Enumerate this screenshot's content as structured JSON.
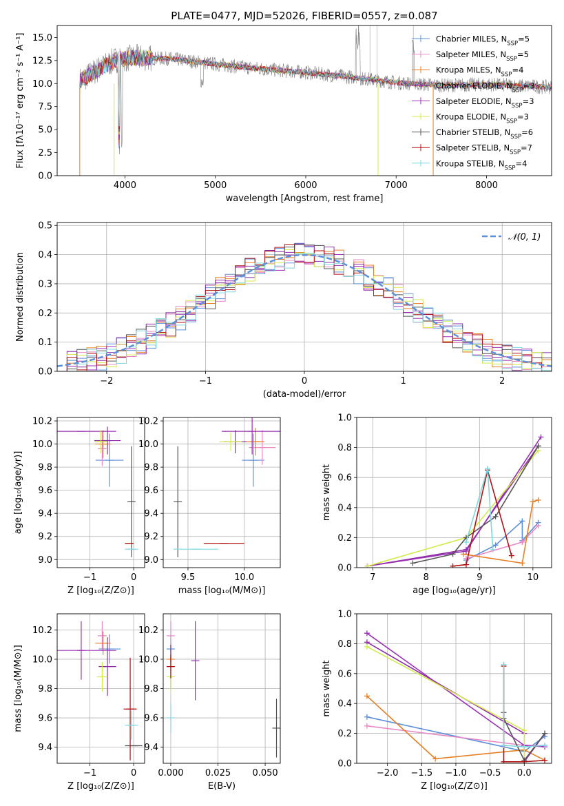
{
  "colors": {
    "chabrier_miles": "#5b8fd9",
    "salpeter_miles": "#e889c5",
    "kroupa_miles": "#e67e22",
    "chabrier_elodie": "#8e2ca8",
    "salpeter_elodie": "#9b30b5",
    "kroupa_elodie": "#d4ea4a",
    "chabrier_stelib": "#555555",
    "salpeter_stelib": "#b01010",
    "kroupa_stelib": "#7fd7e0",
    "normal": "#5b8fd9",
    "grid": "#b0b0b0"
  },
  "chart_data": [
    {
      "id": "spectrum",
      "type": "line",
      "title": "PLATE=0477, MJD=52026, FIBERID=0557, z=0.087",
      "xlabel": "wavelength [Angstrom, rest frame]",
      "ylabel": "Flux [fλ10⁻¹⁷ erg cm⁻² s⁻¹ A⁻¹]",
      "xlim": [
        3250,
        8720
      ],
      "ylim": [
        0,
        16.3
      ],
      "xticks": [
        "4000",
        "5000",
        "6000",
        "7000",
        "8000"
      ],
      "yticks": [
        "0.0",
        "2.5",
        "5.0",
        "7.5",
        "10.0",
        "12.5",
        "15.0"
      ],
      "legend_position": "top-right",
      "series": [
        {
          "name": "Chabrier MILES, N",
          "sub": "SSP",
          "eq": "=5",
          "color_key": "chabrier_miles"
        },
        {
          "name": "Salpeter MILES, N",
          "sub": "SSP",
          "eq": "=5",
          "color_key": "salpeter_miles"
        },
        {
          "name": "Kroupa MILES, N",
          "sub": "SSP",
          "eq": "=4",
          "color_key": "kroupa_miles"
        },
        {
          "name": "Chabrier ELODIE, N",
          "sub": "SSP",
          "eq": "=3",
          "color_key": "chabrier_elodie"
        },
        {
          "name": "Salpeter ELODIE, N",
          "sub": "SSP",
          "eq": "=3",
          "color_key": "salpeter_elodie"
        },
        {
          "name": "Kroupa ELODIE, N",
          "sub": "SSP",
          "eq": "=3",
          "color_key": "kroupa_elodie"
        },
        {
          "name": "Chabrier STELIB, N",
          "sub": "SSP",
          "eq": "=6",
          "color_key": "chabrier_stelib"
        },
        {
          "name": "Salpeter STELIB, N",
          "sub": "SSP",
          "eq": "=7",
          "color_key": "salpeter_stelib"
        },
        {
          "name": "Kroupa STELIB, N",
          "sub": "SSP",
          "eq": "=4",
          "color_key": "kroupa_stelib"
        }
      ],
      "continuum": [
        [
          3500,
          10.3
        ],
        [
          3700,
          11.5
        ],
        [
          3900,
          12.6
        ],
        [
          4100,
          12.8
        ],
        [
          4500,
          12.7
        ],
        [
          5000,
          12.1
        ],
        [
          5500,
          11.6
        ],
        [
          6000,
          11.2
        ],
        [
          6500,
          10.7
        ],
        [
          7000,
          10.1
        ],
        [
          7500,
          9.8
        ],
        [
          8000,
          9.9
        ],
        [
          8500,
          9.7
        ],
        [
          8720,
          9.6
        ]
      ]
    },
    {
      "id": "residuals",
      "type": "step",
      "xlabel": "(data-model)/error",
      "ylabel": "Normed distribution",
      "xlim": [
        -2.5,
        2.5
      ],
      "ylim": [
        0,
        0.51
      ],
      "xticks": [
        "−2",
        "−1",
        "0",
        "1",
        "2"
      ],
      "yticks": [
        "0.0",
        "0.1",
        "0.2",
        "0.3",
        "0.4",
        "0.5"
      ],
      "legend": "𝒩(0, 1)",
      "legend_position": "top-right",
      "bin_width": 0.1
    },
    {
      "id": "age_vs_Z",
      "type": "errorbar",
      "xlabel": "Z [log₁₀(Z/Z⊙)]",
      "ylabel": "age  [log₁₀(age/yr)]",
      "xlim": [
        -1.75,
        0.25
      ],
      "ylim": [
        8.93,
        10.23
      ],
      "xticks": [
        "−1",
        "0"
      ],
      "xtick_values": [
        -1,
        0
      ],
      "yticks": [
        "9.0",
        "9.2",
        "9.4",
        "9.6",
        "9.8",
        "10.0",
        "10.2"
      ],
      "points": [
        {
          "c": "chabrier_miles",
          "x": -0.55,
          "xe": 0.32,
          "y": 9.86,
          "ye": 0.23
        },
        {
          "c": "salpeter_miles",
          "x": -0.72,
          "xe": 0.1,
          "y": 9.96,
          "ye": 0.15
        },
        {
          "c": "kroupa_miles",
          "x": -0.7,
          "xe": 0.18,
          "y": 10.0,
          "ye": 0.12
        },
        {
          "c": "chabrier_elodie",
          "x": -0.6,
          "xe": 0.3,
          "y": 10.03,
          "ye": 0.12
        },
        {
          "c": "salpeter_elodie",
          "x": -1.2,
          "xe": 0.8,
          "y": 10.11,
          "ye": 0.0
        },
        {
          "c": "kroupa_elodie",
          "x": -0.75,
          "xe": 0.15,
          "y": 10.02,
          "ye": 0.1
        },
        {
          "c": "chabrier_stelib",
          "x": -0.05,
          "xe": 0.05,
          "y": 9.5,
          "ye": 0.48
        },
        {
          "c": "salpeter_stelib",
          "x": -0.1,
          "xe": 0.1,
          "y": 9.14,
          "ye": 0.0
        },
        {
          "c": "kroupa_stelib",
          "x": -0.05,
          "xe": 0.15,
          "y": 9.09,
          "ye": 0.0
        }
      ]
    },
    {
      "id": "age_vs_mass",
      "type": "errorbar",
      "xlabel": "mass [log₁₀(M/M⊙)]",
      "ylabel": "",
      "xlim": [
        9.28,
        10.32
      ],
      "ylim": [
        8.93,
        10.23
      ],
      "xticks": [
        "9.5",
        "10.0"
      ],
      "xtick_values": [
        9.5,
        10.0
      ],
      "yticks": [
        "9.0",
        "9.2",
        "9.4",
        "9.6",
        "9.8",
        "10.0",
        "10.2"
      ],
      "points": [
        {
          "c": "chabrier_miles",
          "x": 10.08,
          "xe": 0.1,
          "y": 9.86,
          "ye": 0.23
        },
        {
          "c": "salpeter_miles",
          "x": 10.16,
          "xe": 0.12,
          "y": 9.97,
          "ye": 0.15
        },
        {
          "c": "kroupa_miles",
          "x": 10.1,
          "xe": 0.08,
          "y": 10.02,
          "ye": 0.12
        },
        {
          "c": "chabrier_elodie",
          "x": 9.92,
          "xe": 0.1,
          "y": 10.02,
          "ye": 0.1
        },
        {
          "c": "salpeter_elodie",
          "x": 10.07,
          "xe": 0.27,
          "y": 10.11,
          "ye": 0.2
        },
        {
          "c": "kroupa_elodie",
          "x": 9.88,
          "xe": 0.1,
          "y": 10.02,
          "ye": 0.08
        },
        {
          "c": "chabrier_stelib",
          "x": 9.41,
          "xe": 0.0,
          "y": 9.5,
          "ye": 0.48
        },
        {
          "c": "salpeter_stelib",
          "x": 9.82,
          "xe": 0.18,
          "y": 9.14,
          "ye": 0.0
        },
        {
          "c": "kroupa_stelib",
          "x": 9.57,
          "xe": 0.2,
          "y": 9.09,
          "ye": 0.0
        }
      ]
    },
    {
      "id": "mw_vs_age",
      "type": "line",
      "xlabel": "age  [log₁₀(age/yr)]",
      "ylabel": "mass weight",
      "xlim": [
        6.7,
        10.35
      ],
      "ylim": [
        0,
        1.0
      ],
      "xticks": [
        "7",
        "8",
        "9",
        "10"
      ],
      "xtick_values": [
        7,
        8,
        9,
        10
      ],
      "yticks": [
        "0.0",
        "0.2",
        "0.4",
        "0.6",
        "0.8",
        "1.0"
      ],
      "series": [
        {
          "c": "chabrier_miles",
          "pts": [
            [
              8.75,
              0.05
            ],
            [
              9.3,
              0.15
            ],
            [
              9.8,
              0.31
            ],
            [
              9.8,
              0.18
            ],
            [
              10.1,
              0.3
            ]
          ]
        },
        {
          "c": "salpeter_miles",
          "pts": [
            [
              8.75,
              0.06
            ],
            [
              9.8,
              0.17
            ],
            [
              10.1,
              0.28
            ]
          ]
        },
        {
          "c": "kroupa_miles",
          "pts": [
            [
              8.7,
              0.09
            ],
            [
              9.8,
              0.03
            ],
            [
              10.0,
              0.44
            ],
            [
              10.1,
              0.45
            ]
          ]
        },
        {
          "c": "chabrier_elodie",
          "pts": [
            [
              6.9,
              0.01
            ],
            [
              8.75,
              0.12
            ],
            [
              10.1,
              0.81
            ]
          ]
        },
        {
          "c": "salpeter_elodie",
          "pts": [
            [
              6.9,
              0.01
            ],
            [
              8.75,
              0.11
            ],
            [
              10.15,
              0.87
            ]
          ]
        },
        {
          "c": "kroupa_elodie",
          "pts": [
            [
              6.9,
              0.01
            ],
            [
              8.75,
              0.2
            ],
            [
              10.1,
              0.78
            ]
          ]
        },
        {
          "c": "chabrier_stelib",
          "pts": [
            [
              7.75,
              0.03
            ],
            [
              8.5,
              0.09
            ],
            [
              8.75,
              0.2
            ],
            [
              9.3,
              0.34
            ],
            [
              10.1,
              0.81
            ]
          ]
        },
        {
          "c": "salpeter_stelib",
          "pts": [
            [
              8.5,
              0.01
            ],
            [
              8.75,
              0.02
            ],
            [
              9.15,
              0.65
            ],
            [
              9.6,
              0.08
            ]
          ]
        },
        {
          "c": "kroupa_stelib",
          "pts": [
            [
              8.75,
              0.17
            ],
            [
              9.15,
              0.66
            ],
            [
              9.25,
              0.12
            ]
          ]
        }
      ]
    },
    {
      "id": "mass_vs_Z",
      "type": "errorbar",
      "xlabel": "Z [log₁₀(Z/Z⊙)]",
      "ylabel": "mass [log₁₀(M/M⊙)]",
      "xlim": [
        -1.75,
        0.25
      ],
      "ylim": [
        9.29,
        10.31
      ],
      "xticks": [
        "−1",
        "0"
      ],
      "xtick_values": [
        -1,
        0
      ],
      "yticks": [
        "9.4",
        "9.6",
        "9.8",
        "10.0",
        "10.2"
      ],
      "points": [
        {
          "c": "chabrier_miles",
          "x": -0.55,
          "xe": 0.25,
          "y": 10.07,
          "ye": 0.1
        },
        {
          "c": "salpeter_miles",
          "x": -0.72,
          "xe": 0.1,
          "y": 10.16,
          "ye": 0.1
        },
        {
          "c": "kroupa_miles",
          "x": -0.7,
          "xe": 0.18,
          "y": 10.11,
          "ye": 0.08
        },
        {
          "c": "chabrier_elodie",
          "x": -0.6,
          "xe": 0.2,
          "y": 9.95,
          "ye": 0.2
        },
        {
          "c": "salpeter_elodie",
          "x": -1.2,
          "xe": 0.8,
          "y": 10.06,
          "ye": 0.2
        },
        {
          "c": "kroupa_elodie",
          "x": -0.72,
          "xe": 0.12,
          "y": 9.88,
          "ye": 0.1
        },
        {
          "c": "chabrier_stelib",
          "x": 0.0,
          "xe": 0.2,
          "y": 9.41,
          "ye": 0.0
        },
        {
          "c": "salpeter_stelib",
          "x": -0.08,
          "xe": 0.15,
          "y": 9.66,
          "ye": 0.35
        },
        {
          "c": "kroupa_stelib",
          "x": -0.05,
          "xe": 0.15,
          "y": 9.55,
          "ye": 0.1
        }
      ]
    },
    {
      "id": "mass_vs_ebv",
      "type": "errorbar",
      "xlabel": "E(B-V)",
      "ylabel": "",
      "xlim": [
        -0.004,
        0.058
      ],
      "ylim": [
        9.29,
        10.31
      ],
      "xticks": [
        "0.000",
        "0.025",
        "0.050"
      ],
      "xtick_values": [
        0,
        0.025,
        0.05
      ],
      "yticks": [
        "9.4",
        "9.6",
        "9.8",
        "10.0",
        "10.2"
      ],
      "points": [
        {
          "c": "chabrier_miles",
          "x": 0.0,
          "xe": 0,
          "y": 10.07,
          "ye": 0.1
        },
        {
          "c": "salpeter_miles",
          "x": 0.0,
          "xe": 0,
          "y": 10.16,
          "ye": 0.1
        },
        {
          "c": "kroupa_miles",
          "x": 0.0,
          "xe": 0,
          "y": 10.0,
          "ye": 0.08
        },
        {
          "c": "chabrier_elodie",
          "x": 0.0,
          "xe": 0,
          "y": 9.95,
          "ye": 0.15
        },
        {
          "c": "salpeter_elodie",
          "x": 0.013,
          "xe": 0,
          "y": 9.99,
          "ye": 0.27
        },
        {
          "c": "kroupa_elodie",
          "x": 0.0,
          "xe": 0,
          "y": 9.88,
          "ye": 0.1
        },
        {
          "c": "chabrier_stelib",
          "x": 0.056,
          "xe": 0,
          "y": 9.53,
          "ye": 0.2
        },
        {
          "c": "salpeter_stelib",
          "x": 0.0,
          "xe": 0,
          "y": 9.95,
          "ye": 0.08
        },
        {
          "c": "kroupa_stelib",
          "x": 0.0,
          "xe": 0,
          "y": 9.6,
          "ye": 0.1
        }
      ]
    },
    {
      "id": "mw_vs_Z",
      "type": "line",
      "xlabel": "Z [log₁₀(Z/Z⊙)]",
      "ylabel": "mass weight",
      "xlim": [
        -2.45,
        0.4
      ],
      "ylim": [
        0,
        1.0
      ],
      "xticks": [
        "−2.0",
        "−1.5",
        "−1.0",
        "−0.5",
        "0.0"
      ],
      "xtick_values": [
        -2,
        -1.5,
        -1,
        -0.5,
        0
      ],
      "yticks": [
        "0.0",
        "0.2",
        "0.4",
        "0.6",
        "0.8",
        "1.0"
      ],
      "series": [
        {
          "c": "chabrier_miles",
          "pts": [
            [
              -2.3,
              0.31
            ],
            [
              0.0,
              0.08
            ],
            [
              0.3,
              0.18
            ]
          ]
        },
        {
          "c": "salpeter_miles",
          "pts": [
            [
              -2.3,
              0.25
            ],
            [
              0.0,
              0.12
            ],
            [
              0.3,
              0.12
            ]
          ]
        },
        {
          "c": "kroupa_miles",
          "pts": [
            [
              -2.3,
              0.45
            ],
            [
              -1.3,
              0.03
            ],
            [
              0.0,
              0.09
            ],
            [
              0.3,
              0.02
            ]
          ]
        },
        {
          "c": "chabrier_elodie",
          "pts": [
            [
              -2.3,
              0.81
            ],
            [
              0.0,
              0.2
            ],
            [
              0.0,
              0.01
            ],
            [
              0.3,
              0.2
            ]
          ]
        },
        {
          "c": "salpeter_elodie",
          "pts": [
            [
              -2.3,
              0.87
            ],
            [
              0.0,
              0.12
            ],
            [
              0.3,
              0.11
            ]
          ]
        },
        {
          "c": "kroupa_elodie",
          "pts": [
            [
              -2.3,
              0.78
            ],
            [
              0.0,
              0.22
            ],
            [
              0.0,
              0.02
            ]
          ]
        },
        {
          "c": "chabrier_stelib",
          "pts": [
            [
              -0.3,
              0.34
            ],
            [
              -0.3,
              0.3
            ],
            [
              0.0,
              0.02
            ],
            [
              0.3,
              0.2
            ]
          ]
        },
        {
          "c": "salpeter_stelib",
          "pts": [
            [
              -0.3,
              0.65
            ],
            [
              -0.3,
              0.01
            ],
            [
              0.0,
              0.01
            ],
            [
              0.3,
              0.02
            ]
          ]
        },
        {
          "c": "kroupa_stelib",
          "pts": [
            [
              -0.3,
              0.66
            ],
            [
              -0.3,
              0.12
            ],
            [
              0.0,
              0.11
            ],
            [
              0.3,
              0.12
            ]
          ]
        }
      ]
    }
  ]
}
